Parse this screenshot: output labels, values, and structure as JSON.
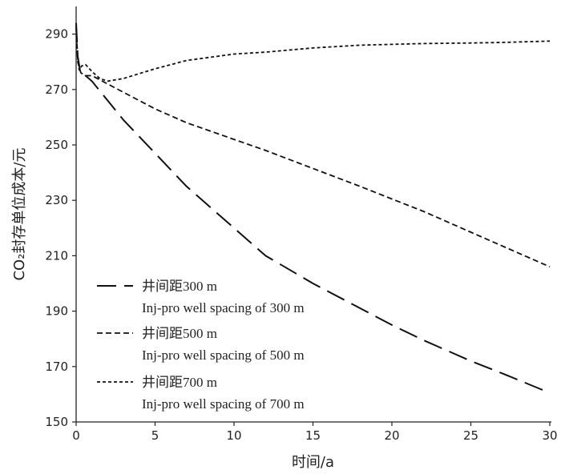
{
  "chart_data": {
    "type": "line",
    "xlabel": "时间/a",
    "ylabel": "CO₂封存单位成本/元",
    "xlim": [
      0,
      30
    ],
    "ylim": [
      150,
      300
    ],
    "x_ticks": [
      "0",
      "5",
      "10",
      "15",
      "20",
      "25",
      "30"
    ],
    "y_ticks": [
      "150",
      "170",
      "190",
      "210",
      "230",
      "250",
      "270",
      "290"
    ],
    "grid": false,
    "legend_position": "bottom-left",
    "series": [
      {
        "name": "井间距300 m",
        "name_en": "Inj-pro well spacing of 300 m",
        "dash": "long-dash",
        "x": [
          0,
          0.1,
          0.25,
          0.5,
          1,
          2,
          3,
          5,
          7,
          10,
          12,
          15,
          18,
          20,
          22,
          25,
          27,
          30
        ],
        "y": [
          294,
          282,
          277,
          275.5,
          273,
          266,
          259,
          247,
          235,
          220,
          210,
          200,
          191,
          185,
          179.5,
          172,
          167.5,
          160.5
        ]
      },
      {
        "name": "井间距500 m",
        "name_en": "Inj-pro well spacing of 500 m",
        "dash": "short-dash",
        "x": [
          0,
          0.1,
          0.3,
          0.6,
          1,
          2,
          3,
          5,
          7,
          10,
          12,
          15,
          18,
          20,
          22,
          25,
          27,
          30
        ],
        "y": [
          293,
          280,
          276,
          275,
          275,
          272,
          269,
          263,
          258,
          252,
          248,
          241.5,
          235,
          230.5,
          226,
          218.5,
          213.5,
          206
        ]
      },
      {
        "name": "井间距700 m",
        "name_en": "Inj-pro well spacing of 700 m",
        "dash": "fine-dash",
        "x": [
          0,
          0.1,
          0.2,
          0.35,
          0.6,
          1,
          1.5,
          2,
          3,
          5,
          7,
          10,
          12,
          15,
          18,
          20,
          22,
          25,
          27,
          30
        ],
        "y": [
          292,
          281,
          277,
          278.5,
          279,
          276.5,
          274,
          273,
          274,
          277.5,
          280.5,
          282.8,
          283.5,
          285,
          286,
          286.3,
          286.6,
          286.8,
          287,
          287.5
        ]
      }
    ]
  }
}
